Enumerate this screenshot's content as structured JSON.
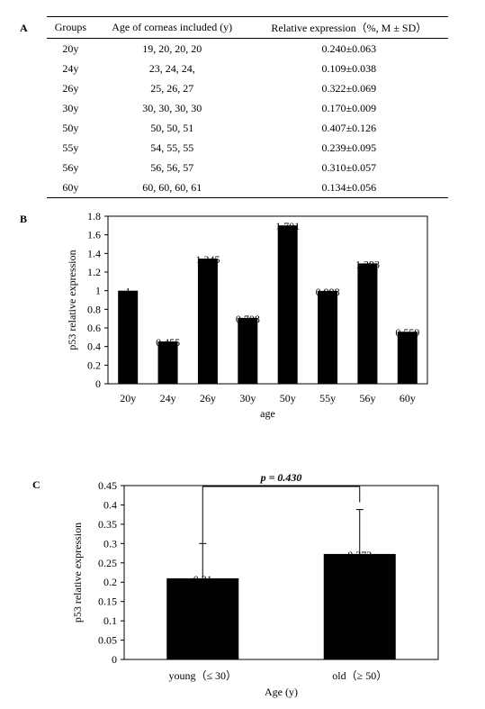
{
  "panel_labels": {
    "a": "A",
    "b": "B",
    "c": "C"
  },
  "table": {
    "headers": [
      "Groups",
      "Age of corneas included (y)",
      "Relative expression（%, M ± SD）"
    ],
    "rows": [
      [
        "20y",
        "19, 20, 20, 20",
        "0.240±0.063"
      ],
      [
        "24y",
        "23, 24, 24,",
        "0.109±0.038"
      ],
      [
        "26y",
        "25, 26, 27",
        "0.322±0.069"
      ],
      [
        "30y",
        "30, 30, 30, 30",
        "0.170±0.009"
      ],
      [
        "50y",
        "50, 50, 51",
        "0.407±0.126"
      ],
      [
        "55y",
        "54, 55, 55",
        "0.239±0.095"
      ],
      [
        "56y",
        "56, 56, 57",
        "0.310±0.057"
      ],
      [
        "60y",
        "60, 60, 60, 61",
        "0.134±0.056"
      ]
    ]
  },
  "chart_data": [
    {
      "type": "bar",
      "categories": [
        "20y",
        "24y",
        "26y",
        "30y",
        "50y",
        "55y",
        "56y",
        "60y"
      ],
      "values": [
        1,
        0.455,
        1.345,
        0.708,
        1.701,
        0.998,
        1.293,
        0.559
      ],
      "data_labels": [
        "1",
        "0.455",
        "1.345",
        "0.708",
        "1.701",
        "0.998",
        "1.293",
        "0.559"
      ],
      "xlabel": "age",
      "ylabel": "p53 relative expression",
      "ylim": [
        0,
        1.8
      ],
      "yticks": [
        "0",
        "0.2",
        "0.4",
        "0.6",
        "0.8",
        "1",
        "1.2",
        "1.4",
        "1.6",
        "1.8"
      ],
      "grid": false,
      "bar_color": "#000000"
    },
    {
      "type": "bar",
      "categories": [
        "young（≤ 30）",
        "old（≥ 50）"
      ],
      "values": [
        0.21,
        0.273
      ],
      "errors": [
        0.09,
        0.115
      ],
      "data_labels": [
        "0.21",
        "0.273"
      ],
      "xlabel": "Age (y)",
      "ylabel": "p53 relative expression",
      "ylim": [
        0,
        0.45
      ],
      "yticks": [
        "0",
        "0.05",
        "0.1",
        "0.15",
        "0.2",
        "0.25",
        "0.3",
        "0.35",
        "0.4",
        "0.45"
      ],
      "annotation": "p = 0.430",
      "grid": false,
      "bar_color": "#000000"
    }
  ]
}
